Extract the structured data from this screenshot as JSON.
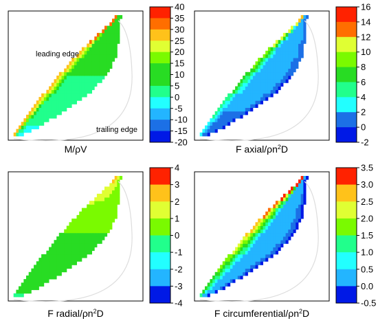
{
  "colors": {
    "band_palette": [
      "#0019e6",
      "#1c70e6",
      "#23b5ff",
      "#22ffff",
      "#21ff8c",
      "#28dc23",
      "#7afa00",
      "#e0ff33",
      "#ffc21a",
      "#ff6e00",
      "#ff2200"
    ],
    "outline": "#000000",
    "blade_outline": "#dddddd",
    "background": "#ffffff"
  },
  "chart_data": [
    {
      "type": "heatmap",
      "title": "M/ρV",
      "colorbar": {
        "ticks": [
          "40",
          "35",
          "30",
          "25",
          "20",
          "15",
          "10",
          "5",
          "0",
          "-5",
          "-10",
          "-15",
          "-20"
        ],
        "min": -20,
        "max": 40,
        "step": 5
      },
      "annotations": [
        "leading edge",
        "trailing edge"
      ]
    },
    {
      "type": "heatmap",
      "title": "F axial/ρn",
      "title_sup": "2",
      "title_end": "D",
      "colorbar": {
        "ticks": [
          "16",
          "14",
          "12",
          "10",
          "8",
          "6",
          "4",
          "2",
          "0",
          "-2"
        ],
        "min": -2,
        "max": 16,
        "step": 2
      }
    },
    {
      "type": "heatmap",
      "title": "F radial/ρn",
      "title_sup": "2",
      "title_end": "D",
      "colorbar": {
        "ticks": [
          "4",
          "3",
          "2",
          "1",
          "0",
          "-1",
          "-2",
          "-3",
          "-4"
        ],
        "min": -4,
        "max": 4,
        "step": 1
      }
    },
    {
      "type": "heatmap",
      "title": "F circumferential/ρn",
      "title_sup": "2",
      "title_end": "D",
      "colorbar": {
        "ticks": [
          "3.5",
          "3.0",
          "2.5",
          "2.0",
          "1.5",
          "1.0",
          "0.5",
          "0.0",
          "-0.5"
        ],
        "min": -0.5,
        "max": 3.5,
        "step": 0.5
      }
    }
  ]
}
